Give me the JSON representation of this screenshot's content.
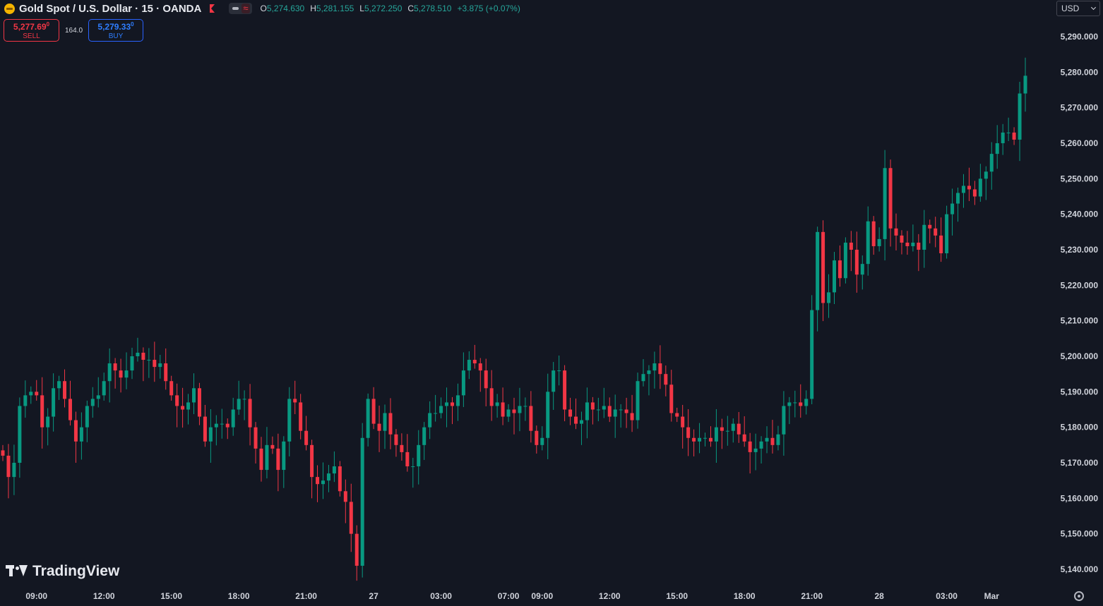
{
  "header": {
    "title": "Gold Spot / U.S. Dollar · 15 · OANDA",
    "ohlc": [
      {
        "key": "O",
        "value": "5,274.630"
      },
      {
        "key": "H",
        "value": "5,281.155"
      },
      {
        "key": "L",
        "value": "5,272.250"
      },
      {
        "key": "C",
        "value": "5,278.510"
      }
    ],
    "change": "+3.875 (+0.07%)"
  },
  "trade": {
    "sell_price": "5,277.69",
    "sell_price_sup": "0",
    "sell_label": "SELL",
    "spread": "164.0",
    "buy_price": "5,279.33",
    "buy_price_sup": "0",
    "buy_label": "BUY"
  },
  "currency": "USD",
  "watermark": "TradingView",
  "colors": {
    "background": "#131722",
    "up": "#089981",
    "down": "#f23645",
    "axis_text": "#d1d4dc"
  },
  "chart_data": {
    "type": "candlestick",
    "symbol": "XAUUSD",
    "interval": "15",
    "ylim": [
      5135,
      5295
    ],
    "y_ticks": [
      5140,
      5150,
      5160,
      5170,
      5180,
      5190,
      5200,
      5210,
      5220,
      5230,
      5240,
      5250,
      5260,
      5270,
      5280,
      5290
    ],
    "y_tick_labels": [
      "5,140.000",
      "5,150.000",
      "5,160.000",
      "5,170.000",
      "5,180.000",
      "5,190.000",
      "5,200.000",
      "5,210.000",
      "5,220.000",
      "5,230.000",
      "5,240.000",
      "5,250.000",
      "5,260.000",
      "5,270.000",
      "5,280.000",
      "5,290.000"
    ],
    "x_labels": [
      "09:00",
      "12:00",
      "15:00",
      "18:00",
      "21:00",
      "27",
      "03:00",
      "07:00",
      "09:00",
      "12:00",
      "15:00",
      "18:00",
      "21:00",
      "28",
      "03:00",
      "Mar"
    ],
    "x_label_slots": [
      6,
      18,
      30,
      42,
      54,
      66,
      78,
      90,
      96,
      108,
      120,
      132,
      144,
      156,
      168,
      176
    ],
    "close_values": [
      5172,
      5166,
      5170,
      5186,
      5189,
      5190,
      5189,
      5180,
      5183,
      5191,
      5193,
      5188,
      5182,
      5176,
      5180,
      5186,
      5188,
      5189,
      5193,
      5198,
      5196,
      5194,
      5196,
      5200,
      5201,
      5199,
      5199,
      5197,
      5198,
      5193,
      5189,
      5186,
      5185,
      5187,
      5191,
      5183,
      5176,
      5180,
      5181,
      5181,
      5180,
      5185,
      5188,
      5188,
      5180,
      5174,
      5168,
      5175,
      5174,
      5168,
      5176,
      5188,
      5187,
      5179,
      5175,
      5166,
      5164,
      5165,
      5167,
      5169,
      5162,
      5159,
      5150,
      5141,
      5177,
      5188,
      5181,
      5179,
      5184,
      5178,
      5175,
      5173,
      5169,
      5169,
      5175,
      5180,
      5184,
      5184,
      5186,
      5187,
      5186,
      5189,
      5196,
      5199,
      5198,
      5196,
      5191,
      5186,
      5187,
      5183,
      5185,
      5184,
      5186,
      5186,
      5179,
      5175,
      5177,
      5190,
      5196,
      5196,
      5185,
      5183,
      5181,
      5182,
      5187,
      5185,
      5185,
      5186,
      5183,
      5185,
      5185,
      5184,
      5182,
      5193,
      5195,
      5196,
      5198,
      5195,
      5192,
      5184,
      5183,
      5180,
      5177,
      5176,
      5177,
      5177,
      5176,
      5180,
      5179,
      5179,
      5181,
      5178,
      5176,
      5173,
      5174,
      5176,
      5177,
      5175,
      5178,
      5186,
      5187,
      5187,
      5186,
      5188,
      5213,
      5235,
      5215,
      5218,
      5227,
      5222,
      5232,
      5230,
      5223,
      5226,
      5238,
      5231,
      5233,
      5253,
      5236,
      5234,
      5232,
      5231,
      5232,
      5230,
      5237,
      5236,
      5234,
      5229,
      5240,
      5243,
      5246,
      5248,
      5247,
      5245,
      5250,
      5252,
      5257,
      5260,
      5263,
      5263,
      5261,
      5274,
      5279
    ]
  }
}
